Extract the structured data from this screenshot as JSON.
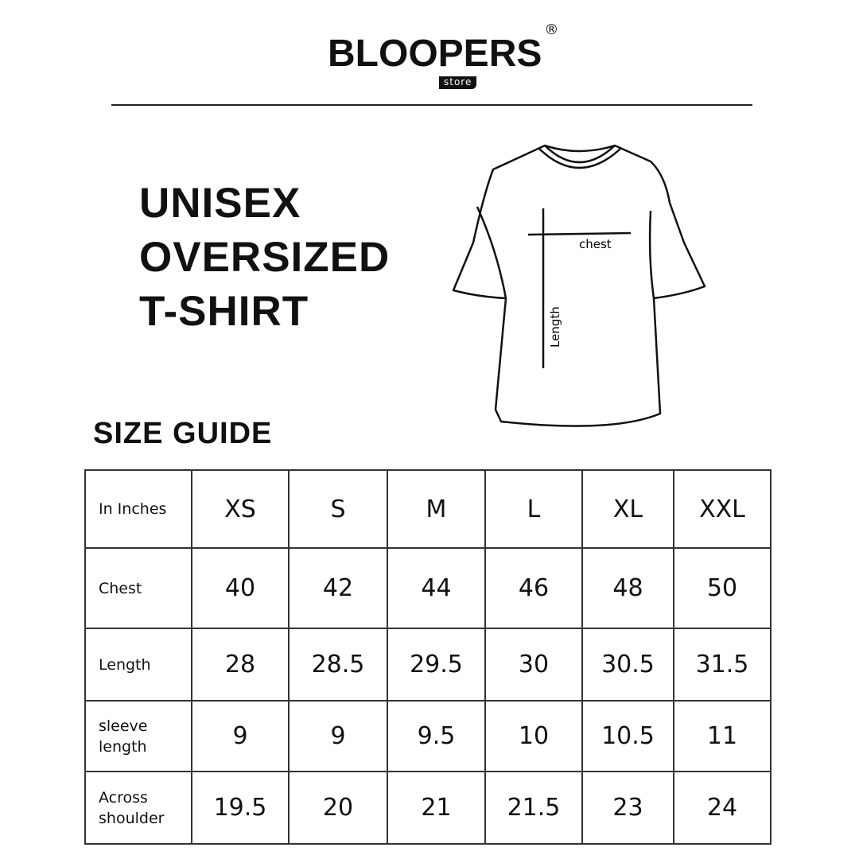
{
  "brand": {
    "name": "BLOOPERS",
    "sub": "store",
    "reg": "®"
  },
  "title_lines": [
    "UNISEX",
    "OVERSIZED",
    "T-SHIRT"
  ],
  "diagram": {
    "chest_label": "chest",
    "length_label": "Length"
  },
  "size_guide_heading": "SIZE GUIDE",
  "table": {
    "corner": "In Inches",
    "sizes": [
      "XS",
      "S",
      "M",
      "L",
      "XL",
      "XXL"
    ],
    "rows": [
      {
        "label": "Chest",
        "values": [
          "40",
          "42",
          "44",
          "46",
          "48",
          "50"
        ]
      },
      {
        "label": "Length",
        "values": [
          "28",
          "28.5",
          "29.5",
          "30",
          "30.5",
          "31.5"
        ]
      },
      {
        "label": "sleeve length",
        "values": [
          "9",
          "9",
          "9.5",
          "10",
          "10.5",
          "11"
        ]
      },
      {
        "label": "Across shoulder",
        "values": [
          "19.5",
          "20",
          "21",
          "21.5",
          "23",
          "24"
        ]
      }
    ]
  }
}
